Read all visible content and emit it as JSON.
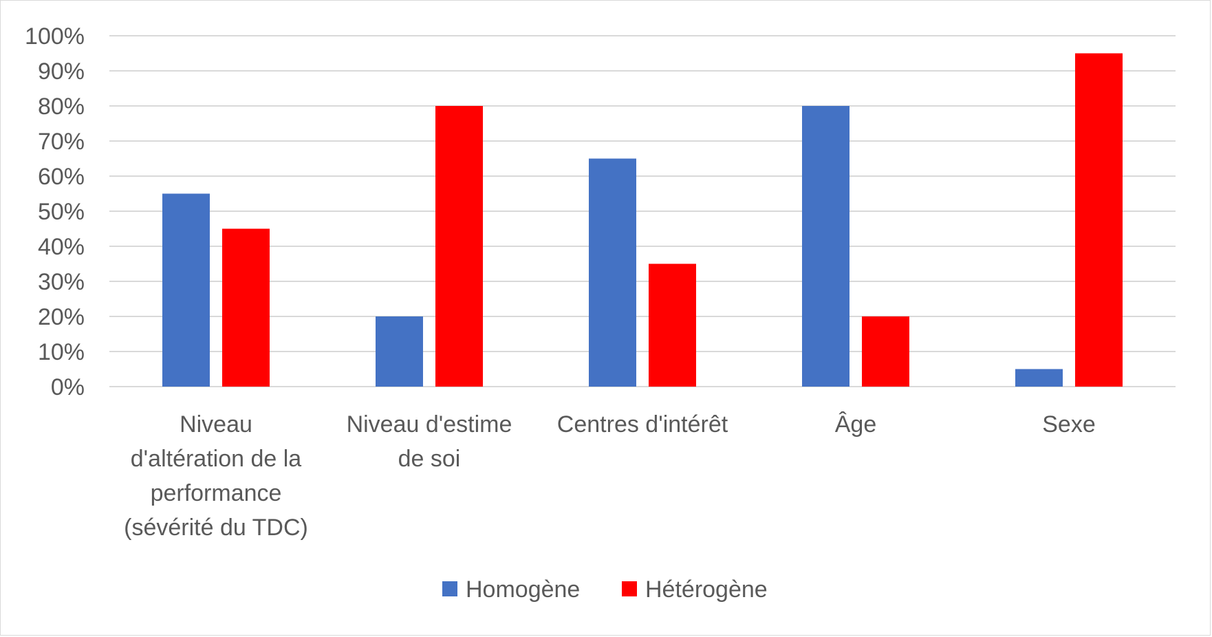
{
  "chart_data": {
    "type": "bar",
    "title": "",
    "xlabel": "",
    "ylabel": "",
    "ylim": [
      0,
      100
    ],
    "y_ticks": [
      "0%",
      "10%",
      "20%",
      "30%",
      "40%",
      "50%",
      "60%",
      "70%",
      "80%",
      "90%",
      "100%"
    ],
    "y_tick_values": [
      0,
      10,
      20,
      30,
      40,
      50,
      60,
      70,
      80,
      90,
      100
    ],
    "categories": [
      [
        "Niveau",
        "d'altération de la",
        "performance",
        "(sévérité du TDC)"
      ],
      [
        "Niveau d'estime",
        "de soi"
      ],
      [
        "Centres d'intérêt"
      ],
      [
        "Âge"
      ],
      [
        "Sexe"
      ]
    ],
    "series": [
      {
        "name": "Homogène",
        "color": "#4472C4",
        "values": [
          55,
          20,
          65,
          80,
          5
        ]
      },
      {
        "name": "Hétérogène",
        "color": "#FF0000",
        "values": [
          45,
          80,
          35,
          20,
          95
        ]
      }
    ],
    "grid": true,
    "legend_position": "bottom",
    "gridline_color": "#d9d9d9"
  }
}
